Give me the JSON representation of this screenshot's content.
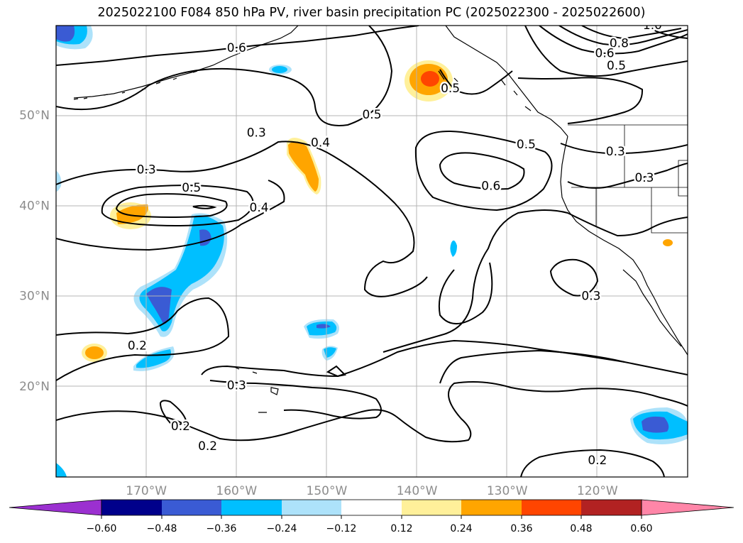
{
  "title": "2025022100 F084 850 hPa PV, river basin precipitation PC (2025022300 - 2025022600)",
  "map": {
    "lat_ticks": [
      {
        "value": 50,
        "label": "50°N"
      },
      {
        "value": 40,
        "label": "40°N"
      },
      {
        "value": 30,
        "label": "30°N"
      },
      {
        "value": 20,
        "label": "20°N"
      }
    ],
    "lon_ticks": [
      {
        "value": -170,
        "label": "170°W"
      },
      {
        "value": -160,
        "label": "160°W"
      },
      {
        "value": -150,
        "label": "150°W"
      },
      {
        "value": -140,
        "label": "140°W"
      },
      {
        "value": -130,
        "label": "130°W"
      },
      {
        "value": -120,
        "label": "120°W"
      }
    ],
    "contour_labels": [
      {
        "text": "0.6",
        "lon": -160,
        "lat": 57.5
      },
      {
        "text": "0.3",
        "lon": -157.8,
        "lat": 48.1
      },
      {
        "text": "0.4",
        "lon": -150.7,
        "lat": 47.0
      },
      {
        "text": "0.5",
        "lon": -145,
        "lat": 50.1
      },
      {
        "text": "0.5",
        "lon": -136.3,
        "lat": 53
      },
      {
        "text": "0.5",
        "lon": -127.9,
        "lat": 46.8
      },
      {
        "text": "0.6",
        "lon": -131.8,
        "lat": 42.2
      },
      {
        "text": "0.3",
        "lon": -170,
        "lat": 44.0
      },
      {
        "text": "0.5",
        "lon": -165,
        "lat": 42.0
      },
      {
        "text": "0.4",
        "lon": -157.5,
        "lat": 39.8
      },
      {
        "text": "0.3",
        "lon": -118,
        "lat": 46.0
      },
      {
        "text": "0.3",
        "lon": -114.8,
        "lat": 43.1
      },
      {
        "text": "0.3",
        "lon": -120.7,
        "lat": 30.0
      },
      {
        "text": "1.0",
        "lon": -113.9,
        "lat": 60.0
      },
      {
        "text": "0.8",
        "lon": -117.6,
        "lat": 58.0
      },
      {
        "text": "0.6",
        "lon": -119.2,
        "lat": 56.9
      },
      {
        "text": "0.5",
        "lon": -117.9,
        "lat": 55.5
      },
      {
        "text": "0.2",
        "lon": -171,
        "lat": 24.5
      },
      {
        "text": "0.3",
        "lon": -160,
        "lat": 20.1
      },
      {
        "text": "0.2",
        "lon": -166.2,
        "lat": 15.6
      },
      {
        "text": "0.2",
        "lon": -163.2,
        "lat": 13.4
      },
      {
        "text": "0.2",
        "lon": -120,
        "lat": 11.8
      }
    ]
  },
  "colorbar": {
    "tick_labels": [
      "−0.60",
      "−0.48",
      "−0.36",
      "−0.24",
      "−0.12",
      "0.12",
      "0.24",
      "0.36",
      "0.48",
      "0.60"
    ],
    "colors": [
      "#9b30d0",
      "#00008b",
      "#3a5bd4",
      "#00bfff",
      "#ade2fa",
      "#ffffff",
      "#fff09a",
      "#ffa500",
      "#ff4500",
      "#b22222",
      "#ff86a8"
    ]
  }
}
